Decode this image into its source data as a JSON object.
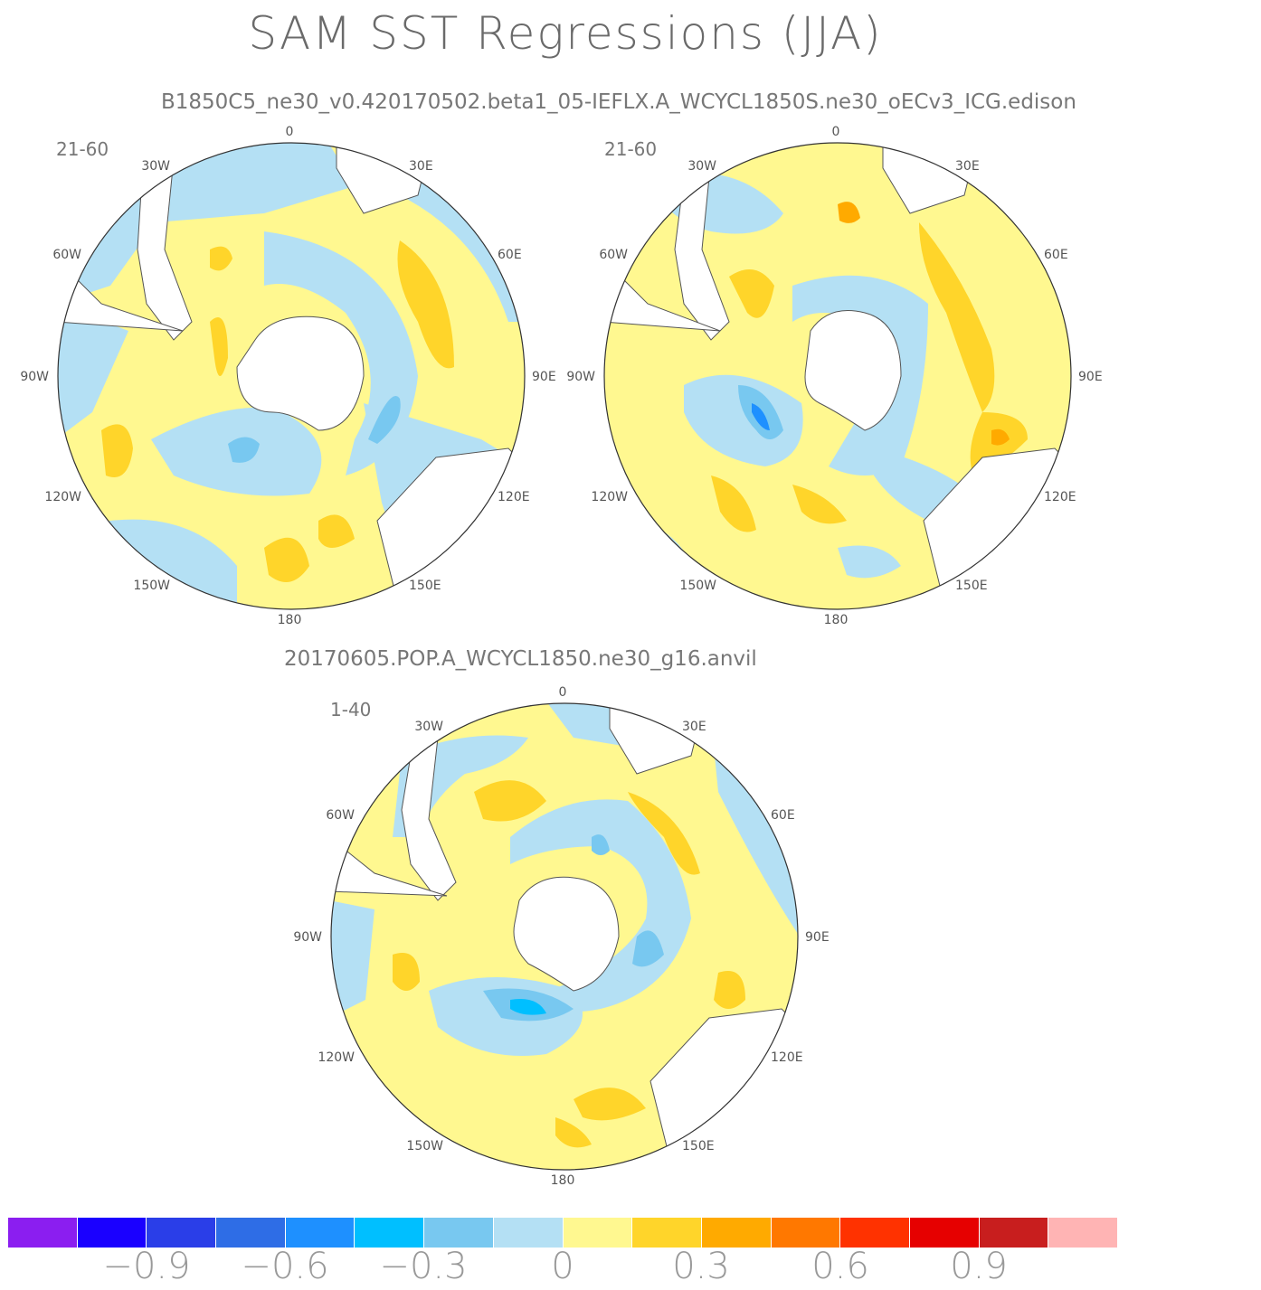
{
  "title": "SAM SST Regressions (JJA)",
  "model1_label": "B1850C5_ne30_v0.420170502.beta1_05-IEFLX.A_WCYCL1850S.ne30_oECv3_ICG.edison",
  "model2_label": "20170605.POP.A_WCYCL1850.ne30_g16.anvil",
  "panels": [
    {
      "period": "21-60"
    },
    {
      "period": "21-60"
    },
    {
      "period": "1-40"
    }
  ],
  "longitude_labels": [
    "0",
    "30E",
    "60E",
    "90E",
    "120E",
    "150E",
    "180",
    "150W",
    "120W",
    "90W",
    "60W",
    "30W"
  ],
  "colorbar": {
    "colors": [
      "#8b1ef0",
      "#1a00ff",
      "#2a3ee8",
      "#2e6de6",
      "#1e90ff",
      "#00bfff",
      "#78c8f0",
      "#b4e0f4",
      "#fff890",
      "#ffd52a",
      "#ffaa00",
      "#ff7800",
      "#ff3200",
      "#e60000",
      "#c81e1e",
      "#ffb4b4"
    ],
    "labels": [
      "−0.9",
      "−0.6",
      "−0.3",
      "0",
      "0.3",
      "0.6",
      "0.9"
    ]
  }
}
